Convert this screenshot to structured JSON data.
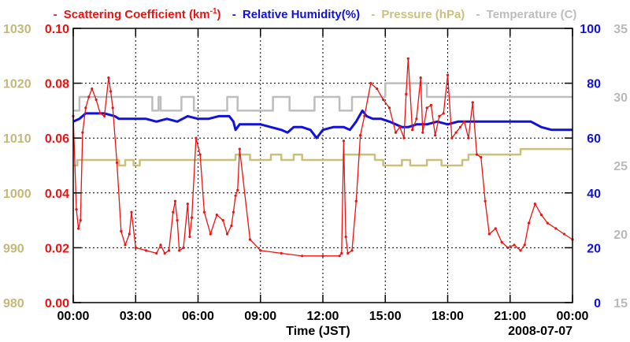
{
  "chart_data": {
    "type": "line",
    "xlabel": "Time (JST)",
    "date_label": "2008-07-07",
    "x_ticks": [
      "00:00",
      "03:00",
      "06:00",
      "09:00",
      "12:00",
      "15:00",
      "18:00",
      "21:00",
      "00:00"
    ],
    "x_range_hours": [
      0,
      24
    ],
    "legend": [
      {
        "dash": "-",
        "text": "Scattering Coefficient (km",
        "sup": "-1",
        "tail": ")",
        "color": "#ee1111"
      },
      {
        "dash": "-",
        "text": "Relative Humidity(%)",
        "color": "#1111dd"
      },
      {
        "dash": "-",
        "text": "Pressure (hPa)",
        "color": "#cbbf7c"
      },
      {
        "dash": "-",
        "text": "Temperature (C)",
        "color": "#bdbdbd"
      }
    ],
    "axes": {
      "pressure": {
        "ticks": [
          "980",
          "990",
          "1000",
          "1010",
          "1020",
          "1030"
        ],
        "range": [
          980,
          1030
        ],
        "color": "#c4b877"
      },
      "scattering": {
        "ticks": [
          "0.00",
          "0.02",
          "0.04",
          "0.06",
          "0.08",
          "0.10"
        ],
        "range": [
          0,
          0.1
        ],
        "color": "#ee1111"
      },
      "humidity": {
        "ticks": [
          "0",
          "20",
          "40",
          "60",
          "80",
          "100"
        ],
        "range": [
          0,
          100
        ],
        "color": "#1111dd"
      },
      "temperature": {
        "ticks": [
          "15",
          "20",
          "25",
          "30",
          "35"
        ],
        "range": [
          15,
          35
        ],
        "color": "#b9b9b9"
      }
    },
    "series": [
      {
        "name": "Scattering Coefficient",
        "axis": "scattering",
        "color": "#ee1111",
        "x": [
          0,
          0.15,
          0.25,
          0.35,
          0.45,
          0.6,
          0.75,
          0.9,
          1.1,
          1.3,
          1.5,
          1.7,
          1.8,
          1.9,
          2.1,
          2.3,
          2.5,
          2.7,
          2.8,
          3.0,
          3.5,
          4.0,
          4.2,
          4.4,
          4.6,
          4.8,
          4.9,
          5.0,
          5.1,
          5.3,
          5.5,
          5.6,
          5.7,
          5.9,
          6.1,
          6.3,
          6.6,
          6.9,
          7.2,
          7.4,
          7.6,
          7.7,
          7.8,
          7.9,
          8.0,
          8.5,
          9.0,
          10.0,
          11.0,
          12.0,
          12.8,
          12.9,
          13.0,
          13.1,
          13.2,
          13.4,
          13.6,
          13.8,
          14.0,
          14.3,
          14.6,
          14.9,
          15.2,
          15.5,
          15.7,
          15.9,
          16.0,
          16.1,
          16.3,
          16.5,
          16.7,
          16.8,
          17.0,
          17.2,
          17.4,
          17.6,
          17.8,
          18.0,
          18.2,
          18.4,
          18.6,
          18.8,
          19.0,
          19.2,
          19.4,
          19.6,
          19.8,
          20.0,
          20.3,
          20.6,
          20.9,
          21.2,
          21.5,
          21.7,
          21.9,
          22.2,
          22.5,
          22.8,
          23.2,
          23.6,
          24.0
        ],
        "y": [
          0.068,
          0.034,
          0.027,
          0.03,
          0.062,
          0.071,
          0.075,
          0.078,
          0.074,
          0.069,
          0.068,
          0.082,
          0.077,
          0.071,
          0.051,
          0.026,
          0.021,
          0.025,
          0.033,
          0.02,
          0.019,
          0.018,
          0.021,
          0.018,
          0.019,
          0.033,
          0.037,
          0.03,
          0.019,
          0.02,
          0.036,
          0.024,
          0.031,
          0.06,
          0.054,
          0.033,
          0.025,
          0.032,
          0.03,
          0.025,
          0.028,
          0.033,
          0.039,
          0.041,
          0.056,
          0.023,
          0.019,
          0.018,
          0.017,
          0.017,
          0.017,
          0.018,
          0.059,
          0.024,
          0.018,
          0.019,
          0.037,
          0.061,
          0.068,
          0.08,
          0.078,
          0.074,
          0.071,
          0.062,
          0.064,
          0.06,
          0.076,
          0.089,
          0.063,
          0.067,
          0.082,
          0.062,
          0.071,
          0.072,
          0.061,
          0.068,
          0.069,
          0.083,
          0.06,
          0.062,
          0.064,
          0.066,
          0.06,
          0.073,
          0.054,
          0.053,
          0.037,
          0.025,
          0.027,
          0.022,
          0.02,
          0.021,
          0.019,
          0.021,
          0.029,
          0.036,
          0.032,
          0.029,
          0.027,
          0.025,
          0.023
        ]
      },
      {
        "name": "Relative Humidity",
        "axis": "humidity",
        "color": "#1111dd",
        "x": [
          0,
          0.3,
          0.6,
          1.0,
          1.5,
          2.0,
          2.2,
          2.5,
          3.0,
          3.5,
          4.0,
          4.5,
          5.0,
          5.5,
          6.0,
          6.5,
          7.0,
          7.5,
          7.7,
          7.8,
          8.0,
          8.5,
          9.0,
          9.5,
          10.0,
          10.3,
          10.6,
          11.0,
          11.4,
          11.7,
          12.0,
          12.5,
          13.0,
          13.3,
          13.6,
          13.9,
          14.1,
          14.4,
          14.8,
          15.2,
          15.5,
          15.8,
          16.1,
          16.5,
          17.0,
          17.5,
          18.0,
          18.5,
          19.0,
          19.5,
          20.0,
          21.0,
          22.0,
          22.5,
          23.0,
          24.0
        ],
        "y": [
          66,
          67,
          69,
          69,
          69,
          68,
          67,
          67,
          67,
          67,
          66,
          67,
          66,
          68,
          67,
          67,
          68,
          68,
          66,
          63,
          65,
          65,
          65,
          64,
          63,
          62,
          64,
          64,
          63,
          60,
          63,
          64,
          64,
          63,
          66,
          70,
          68,
          67,
          67,
          66,
          65,
          64,
          64,
          65,
          65,
          66,
          65,
          66,
          66,
          66,
          66,
          66,
          66,
          64,
          63,
          63
        ]
      },
      {
        "name": "Pressure",
        "axis": "pressure",
        "color": "#cbbf7c",
        "x": [
          0,
          0.2,
          0.2,
          2.2,
          2.2,
          2.5,
          2.5,
          2.9,
          2.9,
          3.2,
          3.2,
          7.8,
          7.8,
          8.5,
          8.5,
          9.5,
          9.5,
          10.0,
          10.0,
          10.6,
          10.6,
          11.0,
          11.0,
          13.0,
          13.0,
          14.5,
          14.5,
          14.9,
          14.9,
          15.8,
          15.8,
          16.2,
          16.2,
          17.0,
          17.0,
          17.7,
          17.7,
          18.7,
          18.7,
          19.0,
          19.0,
          21.5,
          21.5,
          24.0
        ],
        "y": [
          1005,
          1005,
          1006,
          1006,
          1005,
          1005,
          1006,
          1006,
          1005,
          1005,
          1006,
          1006,
          1007,
          1007,
          1006,
          1006,
          1007,
          1007,
          1006,
          1006,
          1007,
          1007,
          1006,
          1006,
          1007,
          1007,
          1006,
          1006,
          1005,
          1005,
          1006,
          1006,
          1005,
          1005,
          1006,
          1006,
          1005,
          1005,
          1006,
          1006,
          1007,
          1007,
          1008,
          1008
        ]
      },
      {
        "name": "Temperature",
        "axis": "temperature",
        "color": "#bdbdbd",
        "x": [
          0,
          0.3,
          0.3,
          3.8,
          3.8,
          4.1,
          4.1,
          4.2,
          4.2,
          5.2,
          5.2,
          5.8,
          5.8,
          7.4,
          7.4,
          7.9,
          7.9,
          9.6,
          9.6,
          10.4,
          10.4,
          11.6,
          11.6,
          12.8,
          12.8,
          13.4,
          13.4,
          15.0,
          15.0,
          17.0,
          17.0,
          17.9,
          17.9,
          24.0
        ],
        "y": [
          29,
          29,
          30,
          30,
          29,
          29,
          30,
          30,
          29,
          29,
          30,
          30,
          29,
          29,
          30,
          30,
          29,
          29,
          30,
          30,
          29,
          29,
          30,
          30,
          29,
          29,
          30,
          30,
          31,
          31,
          30,
          30,
          30,
          30
        ]
      }
    ]
  }
}
